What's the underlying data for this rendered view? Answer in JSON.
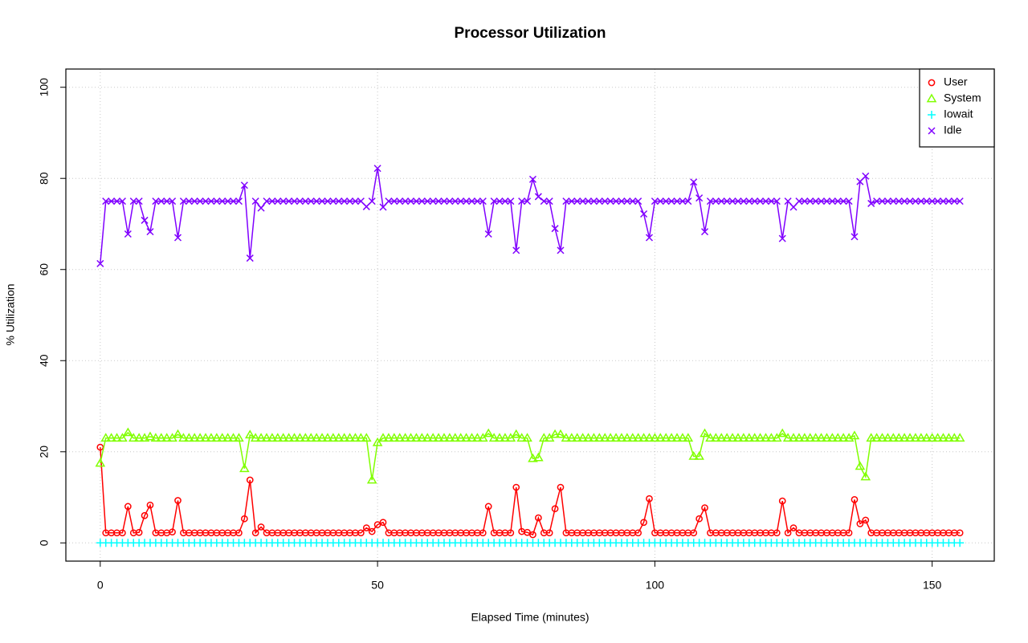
{
  "chart_data": {
    "type": "line",
    "title": "Processor Utilization",
    "x_label": "Elapsed Time (minutes)",
    "y_label": "% Utilization",
    "x": [
      0,
      1,
      2,
      3,
      4,
      5,
      6,
      7,
      8,
      9,
      10,
      11,
      12,
      13,
      14,
      15,
      16,
      17,
      18,
      19,
      20,
      21,
      22,
      23,
      24,
      25,
      26,
      27,
      28,
      29,
      30,
      31,
      32,
      33,
      34,
      35,
      36,
      37,
      38,
      39,
      40,
      41,
      42,
      43,
      44,
      45,
      46,
      47,
      48,
      49,
      50,
      51,
      52,
      53,
      54,
      55,
      56,
      57,
      58,
      59,
      60,
      61,
      62,
      63,
      64,
      65,
      66,
      67,
      68,
      69,
      70,
      71,
      72,
      73,
      74,
      75,
      76,
      77,
      78,
      79,
      80,
      81,
      82,
      83,
      84,
      85,
      86,
      87,
      88,
      89,
      90,
      91,
      92,
      93,
      94,
      95,
      96,
      97,
      98,
      99,
      100,
      101,
      102,
      103,
      104,
      105,
      106,
      107,
      108,
      109,
      110,
      111,
      112,
      113,
      114,
      115,
      116,
      117,
      118,
      119,
      120,
      121,
      122,
      123,
      124,
      125,
      126,
      127,
      128,
      129,
      130,
      131,
      132,
      133,
      134,
      135,
      136,
      137,
      138,
      139,
      140,
      141,
      142,
      143,
      144,
      145,
      146,
      147,
      148,
      149,
      150,
      151,
      152,
      153,
      154,
      155
    ],
    "series": [
      {
        "name": "User",
        "color": "#ff0000",
        "marker": "circle",
        "values": [
          21,
          2.2,
          2.2,
          2.2,
          2.2,
          8,
          2.2,
          2.3,
          6,
          8.3,
          2.2,
          2.2,
          2.2,
          2.4,
          9.3,
          2.2,
          2.2,
          2.2,
          2.2,
          2.2,
          2.2,
          2.2,
          2.2,
          2.2,
          2.2,
          2.2,
          5.3,
          13.8,
          2.2,
          3.5,
          2.2,
          2.2,
          2.2,
          2.2,
          2.2,
          2.2,
          2.2,
          2.2,
          2.2,
          2.2,
          2.2,
          2.2,
          2.2,
          2.2,
          2.2,
          2.2,
          2.2,
          2.2,
          3.3,
          2.5,
          4,
          4.5,
          2.2,
          2.2,
          2.2,
          2.2,
          2.2,
          2.2,
          2.2,
          2.2,
          2.2,
          2.2,
          2.2,
          2.2,
          2.2,
          2.2,
          2.2,
          2.2,
          2.2,
          2.2,
          8,
          2.2,
          2.2,
          2.2,
          2.2,
          12.2,
          2.5,
          2.3,
          1.8,
          5.5,
          2.2,
          2.2,
          7.5,
          12.2,
          2.2,
          2.2,
          2.2,
          2.2,
          2.2,
          2.2,
          2.2,
          2.2,
          2.2,
          2.2,
          2.2,
          2.2,
          2.2,
          2.2,
          4.5,
          9.7,
          2.2,
          2.2,
          2.2,
          2.2,
          2.2,
          2.2,
          2.2,
          2.2,
          5.3,
          7.7,
          2.2,
          2.2,
          2.2,
          2.2,
          2.2,
          2.2,
          2.2,
          2.2,
          2.2,
          2.2,
          2.2,
          2.2,
          2.2,
          9.2,
          2.2,
          3.3,
          2.2,
          2.2,
          2.2,
          2.2,
          2.2,
          2.2,
          2.2,
          2.2,
          2.2,
          2.2,
          9.5,
          4.2,
          5,
          2.2,
          2.2,
          2.2,
          2.2,
          2.2,
          2.2,
          2.2,
          2.2,
          2.2,
          2.2,
          2.2,
          2.2,
          2.2,
          2.2,
          2.2,
          2.2,
          2.2
        ]
      },
      {
        "name": "System",
        "color": "#80ff00",
        "marker": "triangle",
        "values": [
          17.5,
          23,
          23,
          23,
          23,
          24.2,
          23,
          23,
          23,
          23.3,
          23,
          23,
          23,
          23,
          23.8,
          23,
          23,
          23,
          23,
          23,
          23,
          23,
          23,
          23,
          23,
          23,
          16.3,
          23.7,
          23,
          23,
          23,
          23,
          23,
          23,
          23,
          23,
          23,
          23,
          23,
          23,
          23,
          23,
          23,
          23,
          23,
          23,
          23,
          23,
          23,
          13.8,
          22,
          23,
          23,
          23,
          23,
          23,
          23,
          23,
          23,
          23,
          23,
          23,
          23,
          23,
          23,
          23,
          23,
          23,
          23,
          23,
          24,
          23,
          23,
          23,
          23,
          23.8,
          23,
          23,
          18.5,
          18.7,
          23,
          23,
          23.8,
          23.8,
          23,
          23,
          23,
          23,
          23,
          23,
          23,
          23,
          23,
          23,
          23,
          23,
          23,
          23,
          23,
          23,
          23,
          23,
          23,
          23,
          23,
          23,
          23,
          19,
          19,
          24,
          23,
          23,
          23,
          23,
          23,
          23,
          23,
          23,
          23,
          23,
          23,
          23,
          23,
          24,
          23,
          23,
          23,
          23,
          23,
          23,
          23,
          23,
          23,
          23,
          23,
          23,
          23.5,
          16.8,
          14.5,
          23,
          23,
          23,
          23,
          23,
          23,
          23,
          23,
          23,
          23,
          23,
          23,
          23,
          23,
          23,
          23,
          23
        ]
      },
      {
        "name": "Iowait",
        "color": "#00ffff",
        "marker": "plus",
        "values": [
          0,
          0,
          0,
          0,
          0,
          0,
          0,
          0,
          0,
          0,
          0,
          0,
          0,
          0,
          0,
          0,
          0,
          0,
          0,
          0,
          0,
          0,
          0,
          0,
          0,
          0,
          0,
          0,
          0,
          0,
          0,
          0,
          0,
          0,
          0,
          0,
          0,
          0,
          0,
          0,
          0,
          0,
          0,
          0,
          0,
          0,
          0,
          0,
          0,
          0,
          0,
          0,
          0,
          0,
          0,
          0,
          0,
          0,
          0,
          0,
          0,
          0,
          0,
          0,
          0,
          0,
          0,
          0,
          0,
          0,
          0,
          0,
          0,
          0,
          0,
          0,
          0,
          0,
          0,
          0,
          0,
          0,
          0,
          0,
          0,
          0,
          0,
          0,
          0,
          0,
          0,
          0,
          0,
          0,
          0,
          0,
          0,
          0,
          0,
          0,
          0,
          0,
          0,
          0,
          0,
          0,
          0,
          0,
          0,
          0,
          0,
          0,
          0,
          0,
          0,
          0,
          0,
          0,
          0,
          0,
          0,
          0,
          0,
          0,
          0,
          0,
          0,
          0,
          0,
          0,
          0,
          0,
          0,
          0,
          0,
          0,
          0,
          0,
          0,
          0,
          0,
          0,
          0,
          0,
          0,
          0,
          0,
          0,
          0,
          0,
          0,
          0,
          0,
          0,
          0,
          0
        ]
      },
      {
        "name": "Idle",
        "color": "#8000ff",
        "marker": "cross",
        "values": [
          61.3,
          75,
          75,
          75,
          75,
          67.8,
          75,
          75,
          70.8,
          68.3,
          75,
          75,
          75,
          75,
          67,
          75,
          75,
          75,
          75,
          75,
          75,
          75,
          75,
          75,
          75,
          75,
          78.5,
          62.5,
          75,
          73.5,
          75,
          75,
          75,
          75,
          75,
          75,
          75,
          75,
          75,
          75,
          75,
          75,
          75,
          75,
          75,
          75,
          75,
          75,
          73.8,
          75,
          82.2,
          73.7,
          75,
          75,
          75,
          75,
          75,
          75,
          75,
          75,
          75,
          75,
          75,
          75,
          75,
          75,
          75,
          75,
          75,
          75,
          67.8,
          75,
          75,
          75,
          75,
          64.2,
          75,
          75,
          79.8,
          76,
          75,
          75,
          69,
          64.2,
          75,
          75,
          75,
          75,
          75,
          75,
          75,
          75,
          75,
          75,
          75,
          75,
          75,
          75,
          72.2,
          67,
          75,
          75,
          75,
          75,
          75,
          75,
          75,
          79.2,
          75.7,
          68.3,
          75,
          75,
          75,
          75,
          75,
          75,
          75,
          75,
          75,
          75,
          75,
          75,
          75,
          66.8,
          75,
          73.7,
          75,
          75,
          75,
          75,
          75,
          75,
          75,
          75,
          75,
          75,
          67.2,
          79.3,
          80.5,
          74.5,
          75,
          75,
          75,
          75,
          75,
          75,
          75,
          75,
          75,
          75,
          75,
          75,
          75,
          75,
          75,
          75
        ]
      }
    ],
    "xlim": [
      -6.2,
      161.2
    ],
    "ylim": [
      -4,
      104
    ],
    "xticks": [
      0,
      50,
      100,
      150
    ],
    "yticks": [
      0,
      20,
      40,
      60,
      80,
      100
    ],
    "grid": true,
    "legend": "top-right"
  }
}
